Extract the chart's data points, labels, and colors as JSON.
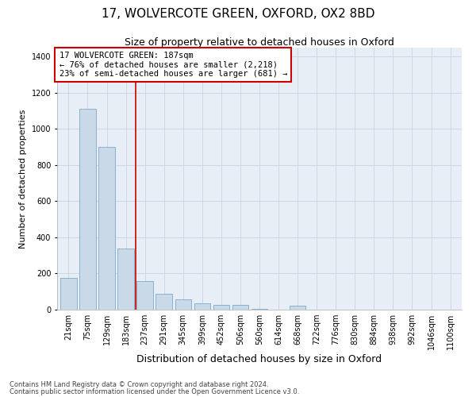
{
  "title": "17, WOLVERCOTE GREEN, OXFORD, OX2 8BD",
  "subtitle": "Size of property relative to detached houses in Oxford",
  "xlabel": "Distribution of detached houses by size in Oxford",
  "ylabel": "Number of detached properties",
  "annotation_title": "17 WOLVERCOTE GREEN: 187sqm",
  "annotation_line1": "← 76% of detached houses are smaller (2,218)",
  "annotation_line2": "23% of semi-detached houses are larger (681) →",
  "footnote1": "Contains HM Land Registry data © Crown copyright and database right 2024.",
  "footnote2": "Contains public sector information licensed under the Open Government Licence v3.0.",
  "bar_color": "#c9d9e8",
  "bar_edgecolor": "#7aaac8",
  "vline_color": "#cc0000",
  "annotation_box_edgecolor": "#cc0000",
  "annotation_box_facecolor": "white",
  "categories": [
    "21sqm",
    "75sqm",
    "129sqm",
    "183sqm",
    "237sqm",
    "291sqm",
    "345sqm",
    "399sqm",
    "452sqm",
    "506sqm",
    "560sqm",
    "614sqm",
    "668sqm",
    "722sqm",
    "776sqm",
    "830sqm",
    "884sqm",
    "938sqm",
    "992sqm",
    "1046sqm",
    "1100sqm"
  ],
  "values": [
    175,
    1110,
    900,
    340,
    160,
    90,
    55,
    35,
    28,
    25,
    5,
    0,
    22,
    0,
    0,
    0,
    0,
    0,
    0,
    0,
    0
  ],
  "ylim": [
    0,
    1450
  ],
  "yticks": [
    0,
    200,
    400,
    600,
    800,
    1000,
    1200,
    1400
  ],
  "background_color": "#ffffff",
  "plot_bg_color": "#e8eef5",
  "grid_color": "#c8d4e4",
  "title_fontsize": 11,
  "subtitle_fontsize": 9,
  "xlabel_fontsize": 9,
  "ylabel_fontsize": 8,
  "tick_fontsize": 7,
  "annotation_fontsize": 7.5,
  "footnote_fontsize": 6
}
